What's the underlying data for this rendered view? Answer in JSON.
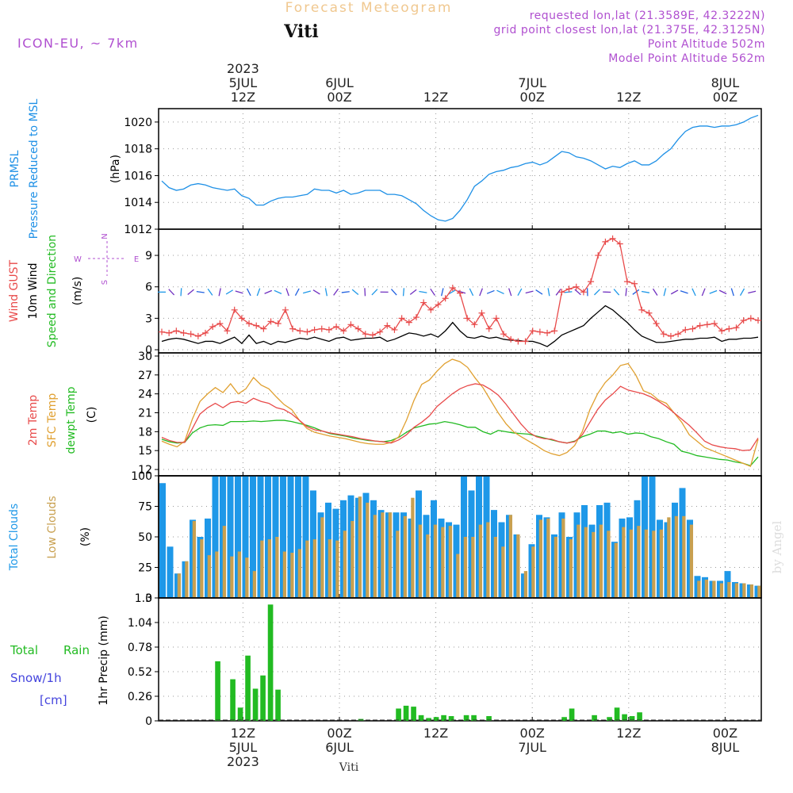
{
  "header": {
    "title": "Forecast Meteogram",
    "location": "Viti",
    "model": "ICON-EU, ~ 7km",
    "requested": "requested lon,lat (21.3589E, 42.3222N)",
    "gridpoint": "grid point closest lon,lat (21.375E, 42.3125N)",
    "point_alt": "Point Altitude 502m",
    "model_alt": "Model Point Altitude 562m",
    "footer": "Viti",
    "watermark": "by Angel"
  },
  "time_axis": {
    "year": "2023",
    "ticks": [
      {
        "pos": 0.14,
        "top": [
          "5JUL",
          "12Z"
        ],
        "bottom": [
          "12Z",
          "5JUL"
        ]
      },
      {
        "pos": 0.3,
        "top": [
          "6JUL",
          "00Z"
        ],
        "bottom": [
          "00Z",
          "6JUL"
        ]
      },
      {
        "pos": 0.46,
        "top": [
          "",
          "12Z"
        ],
        "bottom": [
          "12Z",
          ""
        ]
      },
      {
        "pos": 0.62,
        "top": [
          "7JUL",
          "00Z"
        ],
        "bottom": [
          "00Z",
          "7JUL"
        ]
      },
      {
        "pos": 0.78,
        "top": [
          "",
          "12Z"
        ],
        "bottom": [
          "12Z",
          ""
        ]
      },
      {
        "pos": 0.94,
        "top": [
          "8JUL",
          "00Z"
        ],
        "bottom": [
          "00Z",
          "8JUL"
        ]
      }
    ]
  },
  "colors": {
    "pressure": "#1e90e6",
    "gust": "#e84a4a",
    "wind": "#000000",
    "temp2m": "#e84a4a",
    "sfctemp": "#e0a030",
    "dewpt": "#22bb22",
    "total_clouds": "#1e98e8",
    "low_clouds": "#c8a050",
    "rain": "#22bb22",
    "snow": "#4444dd",
    "purple": "#b050d0"
  },
  "chart_data": [
    {
      "type": "line",
      "ylabel": "(hPa)",
      "side_labels": [
        "PRMSL",
        "Pressure Reduced to MSL"
      ],
      "ylim": [
        1012,
        1021
      ],
      "yticks": [
        1012,
        1014,
        1016,
        1018,
        1020
      ],
      "series": [
        {
          "name": "PRMSL",
          "values": [
            1015.6,
            1015.1,
            1014.9,
            1015.0,
            1015.3,
            1015.4,
            1015.3,
            1015.1,
            1015.0,
            1014.9,
            1015.0,
            1014.5,
            1014.3,
            1013.8,
            1013.8,
            1014.1,
            1014.3,
            1014.4,
            1014.4,
            1014.5,
            1014.6,
            1015.0,
            1014.9,
            1014.9,
            1014.7,
            1014.9,
            1014.6,
            1014.7,
            1014.9,
            1014.9,
            1014.9,
            1014.6,
            1014.6,
            1014.5,
            1014.2,
            1013.9,
            1013.4,
            1013.0,
            1012.7,
            1012.6,
            1012.8,
            1013.4,
            1014.2,
            1015.2,
            1015.6,
            1016.1,
            1016.3,
            1016.4,
            1016.6,
            1016.7,
            1016.9,
            1017.0,
            1016.8,
            1017.0,
            1017.4,
            1017.8,
            1017.7,
            1017.4,
            1017.3,
            1017.1,
            1016.8,
            1016.5,
            1016.7,
            1016.6,
            1016.9,
            1017.1,
            1016.8,
            1016.8,
            1017.1,
            1017.6,
            1018.0,
            1018.7,
            1019.3,
            1019.6,
            1019.7,
            1019.7,
            1019.6,
            1019.7,
            1019.7,
            1019.8,
            1020.0,
            1020.3,
            1020.5
          ]
        }
      ]
    },
    {
      "type": "line",
      "ylabel": "(m/s)",
      "side_labels": [
        "Wind GUST",
        "10m Wind",
        "Speed and Direction"
      ],
      "compass": {
        "n": "N",
        "s": "S",
        "w": "W",
        "e": "E"
      },
      "ylim": [
        -0.3,
        11.5
      ],
      "yticks": [
        0,
        3,
        6,
        9
      ],
      "series": [
        {
          "name": "Wind GUST",
          "values": [
            1.7,
            1.6,
            1.8,
            1.6,
            1.5,
            1.3,
            1.6,
            2.2,
            2.5,
            1.8,
            3.8,
            3.0,
            2.5,
            2.3,
            2.0,
            2.7,
            2.5,
            3.8,
            2.0,
            1.8,
            1.7,
            1.9,
            2.0,
            1.9,
            2.2,
            1.8,
            2.4,
            2.0,
            1.5,
            1.4,
            1.7,
            2.3,
            1.9,
            3.0,
            2.6,
            3.1,
            4.5,
            3.8,
            4.3,
            4.9,
            5.9,
            5.4,
            3.0,
            2.4,
            3.5,
            2.0,
            3.0,
            1.5,
            1.0,
            0.8,
            0.8,
            1.8,
            1.7,
            1.6,
            1.8,
            5.5,
            5.8,
            6.0,
            5.5,
            6.5,
            9.0,
            10.3,
            10.6,
            10.1,
            6.5,
            6.3,
            3.8,
            3.5,
            2.5,
            1.5,
            1.3,
            1.5,
            1.9,
            2.0,
            2.3,
            2.4,
            2.5,
            1.8,
            2.0,
            2.1,
            2.8,
            3.0,
            2.8
          ]
        },
        {
          "name": "10m Wind",
          "values": [
            0.8,
            1.0,
            1.1,
            1.0,
            0.8,
            0.6,
            0.8,
            0.8,
            0.6,
            0.9,
            1.2,
            0.6,
            1.4,
            0.6,
            0.8,
            0.5,
            0.8,
            0.7,
            0.9,
            1.1,
            1.0,
            1.2,
            1.0,
            0.8,
            1.1,
            1.2,
            0.9,
            1.0,
            1.1,
            1.1,
            1.2,
            0.8,
            1.0,
            1.3,
            1.6,
            1.5,
            1.3,
            1.5,
            1.2,
            1.8,
            2.6,
            1.8,
            1.2,
            1.1,
            1.3,
            1.1,
            1.2,
            1.0,
            0.9,
            0.9,
            0.8,
            0.8,
            0.6,
            0.3,
            0.8,
            1.4,
            1.7,
            2.0,
            2.3,
            3.0,
            3.6,
            4.2,
            3.8,
            3.2,
            2.6,
            1.9,
            1.3,
            1.0,
            0.7,
            0.7,
            0.8,
            0.9,
            1.0,
            1.0,
            1.1,
            1.1,
            1.2,
            0.8,
            1.0,
            1.0,
            1.1,
            1.1,
            1.2
          ]
        }
      ]
    },
    {
      "type": "line",
      "ylabel": "(C)",
      "side_labels": [
        "2m Temp",
        "SFC Temp",
        "dewpt Temp"
      ],
      "ylim": [
        11,
        30.5
      ],
      "yticks": [
        12,
        15,
        18,
        21,
        24,
        27,
        30
      ],
      "series": [
        {
          "name": "2m Temp",
          "values": [
            17.1,
            16.6,
            16.3,
            16.3,
            18.5,
            20.8,
            21.8,
            22.5,
            21.8,
            22.6,
            22.8,
            22.5,
            23.3,
            22.8,
            22.5,
            21.8,
            21.5,
            20.8,
            19.8,
            18.8,
            18.3,
            18.1,
            17.8,
            17.6,
            17.4,
            17.2,
            16.9,
            16.7,
            16.5,
            16.4,
            16.2,
            16.7,
            17.5,
            18.7,
            19.5,
            20.5,
            22.0,
            23.0,
            24.0,
            24.8,
            25.3,
            25.6,
            25.4,
            24.7,
            23.8,
            22.4,
            20.8,
            19.2,
            17.9,
            17.2,
            16.9,
            16.8,
            16.4,
            16.2,
            16.4,
            17.5,
            19.5,
            21.5,
            23.0,
            24.0,
            25.2,
            24.6,
            24.3,
            24.0,
            23.5,
            22.8,
            22.0,
            21.0,
            20.0,
            19.0,
            17.8,
            16.5,
            15.9,
            15.6,
            15.4,
            15.3,
            15.0,
            15.1,
            17.0
          ]
        },
        {
          "name": "SFC Temp",
          "values": [
            16.5,
            16.0,
            15.6,
            16.5,
            20.0,
            22.8,
            24.0,
            25.0,
            24.2,
            25.6,
            24.0,
            24.8,
            26.6,
            25.4,
            24.8,
            23.5,
            22.3,
            21.5,
            19.8,
            18.5,
            17.9,
            17.6,
            17.3,
            17.1,
            16.9,
            16.6,
            16.3,
            16.1,
            16.0,
            16.0,
            16.3,
            17.2,
            19.8,
            23.0,
            25.5,
            26.2,
            27.6,
            28.8,
            29.5,
            29.1,
            28.2,
            26.5,
            25.0,
            23.0,
            21.0,
            19.3,
            18.0,
            17.2,
            16.5,
            15.8,
            15.0,
            14.5,
            14.2,
            14.7,
            15.8,
            18.0,
            21.5,
            24.0,
            25.8,
            27.0,
            28.5,
            28.8,
            27.0,
            24.5,
            24.0,
            23.0,
            22.5,
            21.0,
            19.5,
            17.5,
            16.5,
            15.5,
            15.0,
            14.5,
            14.0,
            13.5,
            13.0,
            12.5,
            16.8
          ]
        },
        {
          "name": "dewpt Temp",
          "values": [
            16.8,
            16.4,
            16.2,
            16.3,
            17.8,
            18.6,
            19.0,
            19.1,
            19.0,
            19.6,
            19.6,
            19.6,
            19.7,
            19.6,
            19.7,
            19.8,
            19.8,
            19.6,
            19.3,
            19.0,
            18.6,
            18.1,
            17.7,
            17.5,
            17.3,
            17.0,
            16.8,
            16.6,
            16.5,
            16.4,
            16.6,
            17.1,
            17.9,
            18.6,
            18.9,
            19.2,
            19.3,
            19.6,
            19.4,
            19.1,
            18.7,
            18.7,
            18.0,
            17.6,
            18.2,
            18.0,
            17.8,
            17.7,
            17.6,
            17.3,
            17.0,
            16.7,
            16.4,
            16.2,
            16.5,
            17.2,
            17.6,
            18.1,
            18.1,
            17.8,
            18.0,
            17.6,
            17.8,
            17.7,
            17.2,
            16.9,
            16.4,
            16.0,
            14.9,
            14.6,
            14.2,
            14.0,
            13.8,
            13.6,
            13.5,
            13.2,
            13.0,
            12.6,
            14.0
          ]
        }
      ]
    },
    {
      "type": "bar",
      "ylabel": "(%)",
      "side_labels": [
        "Total Clouds",
        "Low Clouds"
      ],
      "ylim": [
        0,
        100
      ],
      "yticks": [
        0,
        25,
        50,
        75,
        100
      ],
      "series": [
        {
          "name": "Total Clouds",
          "values": [
            94,
            42,
            20,
            30,
            64,
            50,
            65,
            100,
            100,
            100,
            100,
            100,
            100,
            100,
            100,
            100,
            100,
            100,
            100,
            100,
            88,
            70,
            78,
            73,
            80,
            84,
            82,
            86,
            80,
            72,
            70,
            70,
            70,
            65,
            88,
            68,
            80,
            65,
            62,
            60,
            100,
            88,
            100,
            100,
            72,
            62,
            68,
            52,
            20,
            44,
            68,
            66,
            52,
            70,
            50,
            70,
            76,
            60,
            76,
            78,
            46,
            65,
            66,
            80,
            100,
            100,
            64,
            62,
            78,
            90,
            64,
            18,
            17,
            14,
            14,
            22,
            13,
            12,
            11,
            10
          ],
          "x": [
            0,
            1,
            2,
            3,
            4,
            5,
            6,
            7,
            8,
            9,
            10,
            11,
            12,
            13,
            14,
            15,
            16,
            17,
            18,
            19,
            20,
            21,
            22,
            23,
            24,
            25,
            26,
            27,
            28,
            29,
            30,
            31,
            32,
            33,
            34,
            35,
            36,
            37,
            38,
            39,
            40,
            41,
            42,
            43,
            44,
            45,
            46,
            47,
            48,
            49,
            50,
            51,
            52,
            53,
            54,
            55,
            56,
            57,
            58,
            59,
            60,
            61,
            62,
            63,
            64,
            65,
            66,
            67,
            68,
            69,
            70,
            71,
            72,
            73,
            74,
            75,
            76,
            77,
            78,
            79
          ]
        },
        {
          "name": "Low Clouds",
          "values": [
            0,
            0,
            20,
            30,
            63,
            48,
            35,
            38,
            59,
            34,
            38,
            33,
            22,
            47,
            48,
            50,
            38,
            37,
            40,
            47,
            48,
            66,
            48,
            47,
            55,
            63,
            83,
            78,
            68,
            70,
            70,
            55,
            67,
            82,
            60,
            52,
            60,
            58,
            59,
            36,
            50,
            50,
            60,
            62,
            50,
            42,
            68,
            52,
            22,
            42,
            64,
            65,
            50,
            65,
            48,
            60,
            58,
            54,
            60,
            55,
            45,
            58,
            56,
            59,
            56,
            55,
            56,
            66,
            67,
            67,
            60,
            14,
            15,
            14,
            12,
            13,
            12,
            12,
            11,
            10
          ],
          "x": [
            0,
            1,
            2,
            3,
            4,
            5,
            6,
            7,
            8,
            9,
            10,
            11,
            12,
            13,
            14,
            15,
            16,
            17,
            18,
            19,
            20,
            21,
            22,
            23,
            24,
            25,
            26,
            27,
            28,
            29,
            30,
            31,
            32,
            33,
            34,
            35,
            36,
            37,
            38,
            39,
            40,
            41,
            42,
            43,
            44,
            45,
            46,
            47,
            48,
            49,
            50,
            51,
            52,
            53,
            54,
            55,
            56,
            57,
            58,
            59,
            60,
            61,
            62,
            63,
            64,
            65,
            66,
            67,
            68,
            69,
            70,
            71,
            72,
            73,
            74,
            75,
            76,
            77,
            78,
            79
          ]
        }
      ]
    },
    {
      "type": "bar",
      "ylabel": "1hr Precip (mm)",
      "side_labels": [
        "Total",
        "Rain",
        "Snow/1h",
        "[cm]"
      ],
      "ylim": [
        0,
        1.3
      ],
      "yticks": [
        0,
        0.26,
        0.52,
        0.78,
        1.04,
        1.3
      ],
      "ytick_labels": [
        "0",
        "0.26",
        "0.52",
        "0.78",
        "1.04",
        "1.3"
      ],
      "series": [
        {
          "name": "Total Rain",
          "values": [
            0.63,
            0.44,
            0.14,
            0.69,
            0.34,
            0.48,
            1.23,
            0.33,
            0.02,
            0.13,
            0.16,
            0.15,
            0.06,
            0.03,
            0.04,
            0.06,
            0.05,
            0.06,
            0.06,
            0.05,
            0.04,
            0.13,
            0.06,
            0.04,
            0.14,
            0.07,
            0.05,
            0.09
          ],
          "x": [
            7.5,
            9.5,
            10.5,
            11.5,
            12.5,
            13.5,
            14.5,
            15.5,
            26.5,
            31.5,
            32.5,
            33.5,
            34.5,
            35.5,
            36.5,
            37.5,
            38.5,
            40.5,
            41.5,
            43.5,
            53.5,
            54.5,
            57.5,
            59.5,
            60.5,
            61.5,
            62.5,
            63.5
          ]
        }
      ]
    }
  ]
}
